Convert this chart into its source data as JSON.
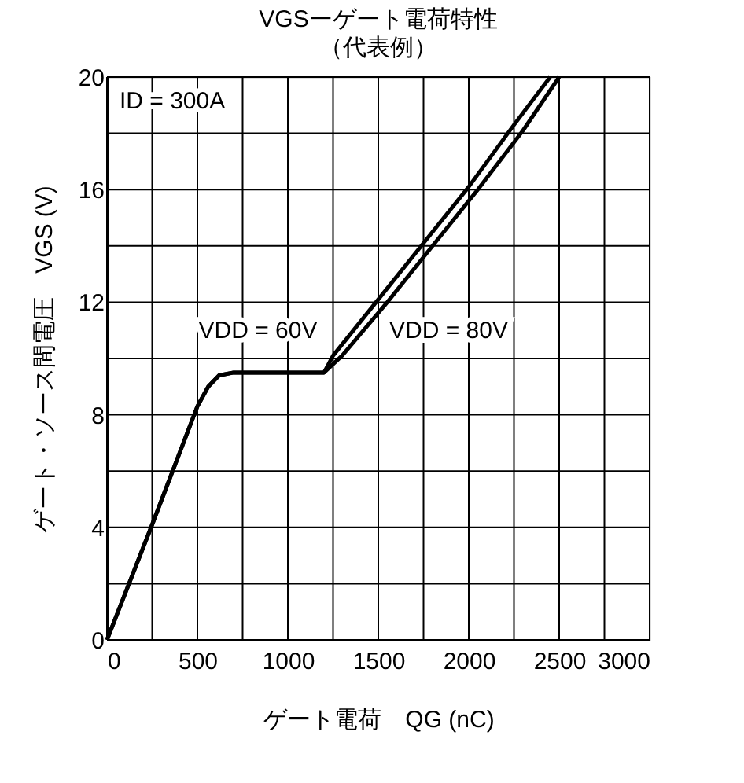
{
  "chart_data": {
    "type": "line",
    "title": "VGSーゲート電荷特性",
    "subtitle": "（代表例）",
    "xlabel": "ゲート電荷　QG (nC)",
    "ylabel": "ゲート・ソース間電圧　VGS (V)",
    "annotations": [
      "ID = 300A"
    ],
    "series": [
      {
        "name": "VDD = 60V",
        "color": "#000000",
        "x": [
          0,
          250,
          500,
          560,
          620,
          700,
          1000,
          1200,
          1250,
          1500,
          1750,
          2000,
          2250,
          2450
        ],
        "values": [
          0,
          4.1,
          8.3,
          9.0,
          9.4,
          9.5,
          9.5,
          9.5,
          10.1,
          12.1,
          14.1,
          16.1,
          18.3,
          20
        ]
      },
      {
        "name": "VDD = 80V",
        "color": "#000000",
        "x": [
          0,
          250,
          500,
          560,
          620,
          700,
          1000,
          1200,
          1300,
          1550,
          1800,
          2050,
          2300,
          2500
        ],
        "values": [
          0,
          4.1,
          8.3,
          9.0,
          9.4,
          9.5,
          9.5,
          9.5,
          10.1,
          12.0,
          14.0,
          16.0,
          18.1,
          20
        ]
      }
    ],
    "xlim": [
      0,
      3000
    ],
    "xticks": [
      0,
      {
        "value": 250,
        "label": null
      },
      500,
      {
        "value": 750,
        "label": null
      },
      1000,
      {
        "value": 1250,
        "label": null
      },
      1500,
      {
        "value": 1750,
        "label": null
      },
      2000,
      {
        "value": 2250,
        "label": null
      },
      2500,
      {
        "value": 2750,
        "label": null
      },
      3000
    ],
    "ylim": [
      0,
      20
    ],
    "yticks": [
      0,
      {
        "value": 2,
        "label": null
      },
      4,
      {
        "value": 6,
        "label": null
      },
      8,
      {
        "value": 10,
        "label": null
      },
      12,
      {
        "value": 14,
        "label": null
      },
      16,
      {
        "value": 18,
        "label": null
      },
      20
    ],
    "grid": true,
    "legend": false,
    "marker": "none",
    "line_style": "solid"
  }
}
